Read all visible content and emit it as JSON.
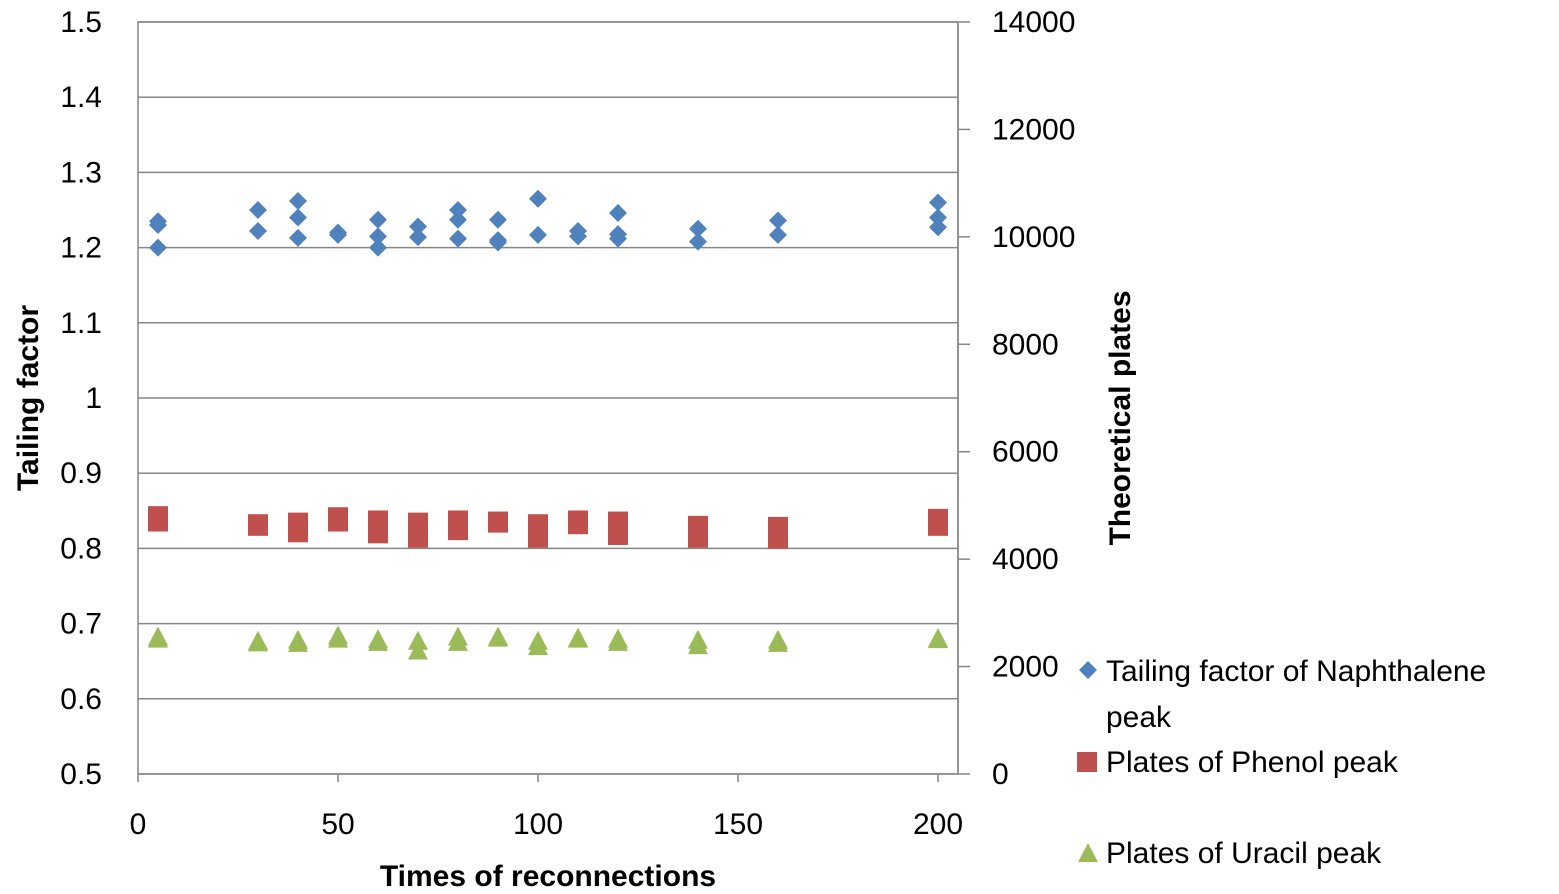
{
  "chart_data": {
    "type": "scatter",
    "xlabel": "Times of reconnections",
    "ylabel": "Tailing factor",
    "y2label": "Theoretical plates",
    "xlim": [
      0,
      205
    ],
    "ylim": [
      0.5,
      1.5
    ],
    "y2lim": [
      0,
      14000
    ],
    "x_ticks": [
      "0",
      "50",
      "100",
      "150",
      "200"
    ],
    "y_ticks": [
      "0.5",
      "0.6",
      "0.7",
      "0.8",
      "0.9",
      "1",
      "1.1",
      "1.2",
      "1.3",
      "1.4",
      "1.5"
    ],
    "y2_ticks": [
      "0",
      "2000",
      "4000",
      "6000",
      "8000",
      "10000",
      "12000",
      "14000"
    ],
    "grid": "horizontal",
    "legend_position": "right",
    "series": [
      {
        "name": "Tailing factor of Naphthalene peak",
        "axis": "left",
        "marker": "diamond",
        "color": "#4F81BD",
        "points": [
          [
            5,
            1.235
          ],
          [
            5,
            1.23
          ],
          [
            5,
            1.2
          ],
          [
            30,
            1.25
          ],
          [
            30,
            1.222
          ],
          [
            40,
            1.262
          ],
          [
            40,
            1.24
          ],
          [
            40,
            1.213
          ],
          [
            50,
            1.22
          ],
          [
            50,
            1.217
          ],
          [
            60,
            1.237
          ],
          [
            60,
            1.215
          ],
          [
            60,
            1.2
          ],
          [
            70,
            1.228
          ],
          [
            70,
            1.214
          ],
          [
            80,
            1.25
          ],
          [
            80,
            1.237
          ],
          [
            80,
            1.212
          ],
          [
            90,
            1.237
          ],
          [
            90,
            1.21
          ],
          [
            90,
            1.207
          ],
          [
            100,
            1.265
          ],
          [
            100,
            1.217
          ],
          [
            110,
            1.222
          ],
          [
            110,
            1.215
          ],
          [
            120,
            1.246
          ],
          [
            120,
            1.218
          ],
          [
            120,
            1.212
          ],
          [
            140,
            1.225
          ],
          [
            140,
            1.208
          ],
          [
            160,
            1.236
          ],
          [
            160,
            1.217
          ],
          [
            200,
            1.26
          ],
          [
            200,
            1.24
          ],
          [
            200,
            1.227
          ]
        ]
      },
      {
        "name": "Plates of Phenol peak",
        "axis": "right",
        "marker": "square",
        "color": "#C0504D",
        "points": [
          [
            5,
            4800
          ],
          [
            5,
            4700
          ],
          [
            30,
            4650
          ],
          [
            30,
            4620
          ],
          [
            40,
            4680
          ],
          [
            40,
            4600
          ],
          [
            40,
            4500
          ],
          [
            50,
            4780
          ],
          [
            50,
            4700
          ],
          [
            60,
            4720
          ],
          [
            60,
            4620
          ],
          [
            60,
            4480
          ],
          [
            70,
            4680
          ],
          [
            70,
            4560
          ],
          [
            70,
            4400
          ],
          [
            80,
            4720
          ],
          [
            80,
            4650
          ],
          [
            80,
            4540
          ],
          [
            90,
            4700
          ],
          [
            90,
            4680
          ],
          [
            100,
            4650
          ],
          [
            100,
            4550
          ],
          [
            100,
            4400
          ],
          [
            110,
            4720
          ],
          [
            110,
            4650
          ],
          [
            120,
            4700
          ],
          [
            120,
            4580
          ],
          [
            120,
            4450
          ],
          [
            140,
            4620
          ],
          [
            140,
            4520
          ],
          [
            140,
            4400
          ],
          [
            160,
            4600
          ],
          [
            160,
            4500
          ],
          [
            160,
            4380
          ],
          [
            200,
            4750
          ],
          [
            200,
            4620
          ]
        ]
      },
      {
        "name": "Plates of Uracil peak",
        "axis": "right",
        "marker": "triangle",
        "color": "#9BBB59",
        "points": [
          [
            5,
            2560
          ],
          [
            5,
            2520
          ],
          [
            30,
            2480
          ],
          [
            30,
            2450
          ],
          [
            40,
            2500
          ],
          [
            40,
            2440
          ],
          [
            50,
            2580
          ],
          [
            50,
            2520
          ],
          [
            60,
            2510
          ],
          [
            60,
            2460
          ],
          [
            70,
            2480
          ],
          [
            70,
            2300
          ],
          [
            80,
            2560
          ],
          [
            80,
            2460
          ],
          [
            90,
            2560
          ],
          [
            90,
            2540
          ],
          [
            100,
            2480
          ],
          [
            100,
            2380
          ],
          [
            110,
            2540
          ],
          [
            110,
            2520
          ],
          [
            120,
            2520
          ],
          [
            120,
            2460
          ],
          [
            140,
            2500
          ],
          [
            140,
            2400
          ],
          [
            160,
            2500
          ],
          [
            160,
            2440
          ],
          [
            200,
            2530
          ],
          [
            200,
            2510
          ]
        ]
      }
    ]
  }
}
